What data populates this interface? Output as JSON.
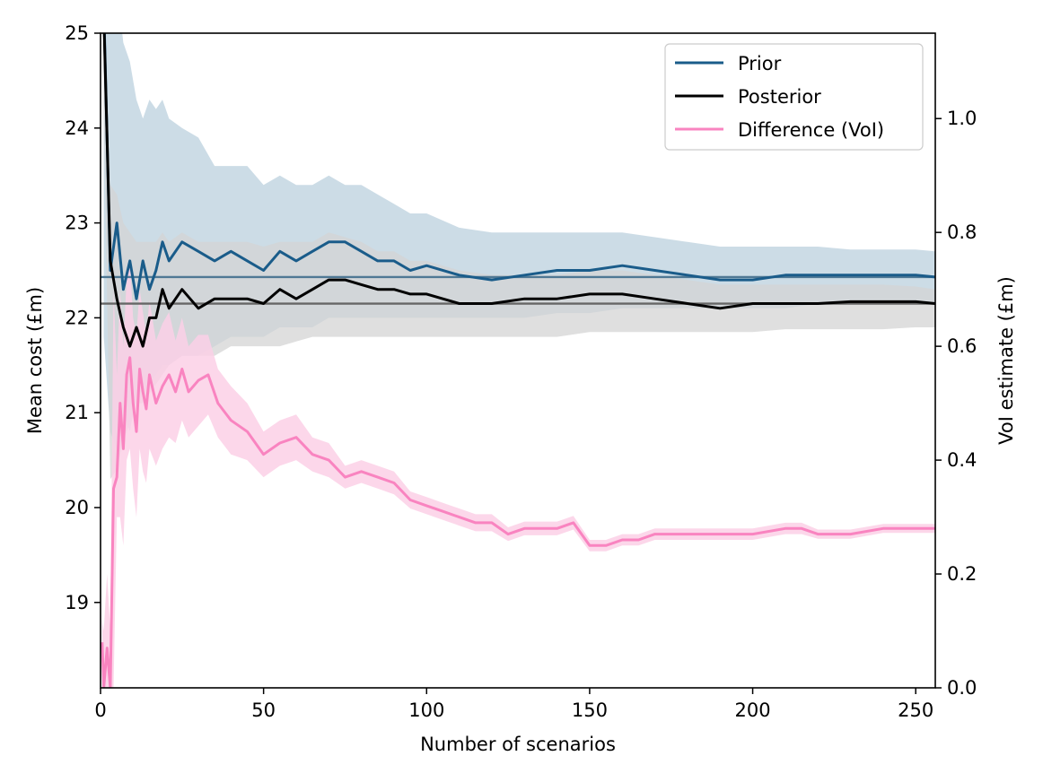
{
  "chart_data": {
    "type": "line",
    "title": "",
    "xlabel": "Number of scenarios",
    "ylabel": "Mean cost (£m)",
    "y2label": "VoI estimate (£m)",
    "xlim": [
      0,
      256
    ],
    "ylim": [
      18.1,
      25
    ],
    "y2lim": [
      0.0,
      1.15
    ],
    "xticks": [
      0,
      50,
      100,
      150,
      200,
      250
    ],
    "yticks": [
      19,
      20,
      21,
      22,
      23,
      24,
      25
    ],
    "y2ticks": [
      0.0,
      0.2,
      0.4,
      0.6,
      0.8,
      1.0
    ],
    "legend_position": "top-right",
    "reference_lines": [
      {
        "name": "Prior mean reference",
        "axis": "left",
        "y": 22.43,
        "color": "#4f7894"
      },
      {
        "name": "Posterior mean reference",
        "axis": "left",
        "y": 22.15,
        "color": "#666666"
      }
    ],
    "series": [
      {
        "name": "Prior",
        "axis": "left",
        "color": "#1a5c8a",
        "band_color": "#c3d6e2",
        "x": [
          1,
          3,
          5,
          7,
          9,
          11,
          13,
          15,
          17,
          19,
          21,
          25,
          30,
          35,
          40,
          45,
          50,
          55,
          60,
          65,
          70,
          75,
          80,
          85,
          90,
          95,
          100,
          110,
          120,
          130,
          140,
          150,
          160,
          170,
          180,
          190,
          200,
          210,
          220,
          230,
          240,
          250,
          256
        ],
        "values": [
          25.3,
          22.5,
          23.0,
          22.3,
          22.6,
          22.2,
          22.6,
          22.3,
          22.5,
          22.8,
          22.6,
          22.8,
          22.7,
          22.6,
          22.7,
          22.6,
          22.5,
          22.7,
          22.6,
          22.7,
          22.8,
          22.8,
          22.7,
          22.6,
          22.6,
          22.5,
          22.55,
          22.45,
          22.4,
          22.45,
          22.5,
          22.5,
          22.55,
          22.5,
          22.45,
          22.4,
          22.4,
          22.45,
          22.45,
          22.45,
          22.45,
          22.45,
          22.43
        ],
        "upper": [
          26.0,
          25.8,
          25.5,
          24.9,
          24.7,
          24.3,
          24.1,
          24.3,
          24.2,
          24.3,
          24.1,
          24.0,
          23.9,
          23.6,
          23.6,
          23.6,
          23.4,
          23.5,
          23.4,
          23.4,
          23.5,
          23.4,
          23.4,
          23.3,
          23.2,
          23.1,
          23.1,
          22.95,
          22.9,
          22.9,
          22.9,
          22.9,
          22.9,
          22.85,
          22.8,
          22.75,
          22.75,
          22.75,
          22.75,
          22.72,
          22.72,
          22.72,
          22.7
        ],
        "lower": [
          21.8,
          20.8,
          20.6,
          21.0,
          20.8,
          21.2,
          21.2,
          21.3,
          21.4,
          21.5,
          21.5,
          21.6,
          21.6,
          21.7,
          21.8,
          21.8,
          21.8,
          21.9,
          21.9,
          21.9,
          22.0,
          22.0,
          22.0,
          22.0,
          22.0,
          22.0,
          22.0,
          22.0,
          22.0,
          22.0,
          22.05,
          22.05,
          22.1,
          22.1,
          22.1,
          22.1,
          22.1,
          22.1,
          22.15,
          22.15,
          22.15,
          22.15,
          22.15
        ]
      },
      {
        "name": "Posterior",
        "axis": "left",
        "color": "#000000",
        "band_color": "#d4d4d4",
        "x": [
          1,
          3,
          5,
          7,
          9,
          11,
          13,
          15,
          17,
          19,
          21,
          25,
          30,
          35,
          40,
          45,
          50,
          55,
          60,
          65,
          70,
          75,
          80,
          85,
          90,
          95,
          100,
          110,
          120,
          130,
          140,
          150,
          160,
          170,
          180,
          190,
          200,
          210,
          220,
          230,
          240,
          250,
          256
        ],
        "values": [
          25.2,
          22.6,
          22.2,
          21.9,
          21.7,
          21.9,
          21.7,
          22.0,
          22.0,
          22.3,
          22.1,
          22.3,
          22.1,
          22.2,
          22.2,
          22.2,
          22.15,
          22.3,
          22.2,
          22.3,
          22.4,
          22.4,
          22.35,
          22.3,
          22.3,
          22.25,
          22.25,
          22.15,
          22.15,
          22.2,
          22.2,
          22.25,
          22.25,
          22.2,
          22.15,
          22.1,
          22.15,
          22.15,
          22.15,
          22.17,
          22.17,
          22.17,
          22.15
        ],
        "lower": [
          24.2,
          20.3,
          20.4,
          20.7,
          20.9,
          21.1,
          21.1,
          21.2,
          21.3,
          21.4,
          21.5,
          21.6,
          21.6,
          21.6,
          21.7,
          21.7,
          21.7,
          21.7,
          21.75,
          21.8,
          21.8,
          21.8,
          21.8,
          21.8,
          21.8,
          21.8,
          21.8,
          21.8,
          21.8,
          21.8,
          21.8,
          21.85,
          21.85,
          21.85,
          21.85,
          21.85,
          21.85,
          21.88,
          21.88,
          21.88,
          21.88,
          21.9,
          21.9
        ],
        "upper": [
          25.6,
          23.4,
          23.3,
          23.0,
          22.9,
          22.8,
          22.8,
          22.8,
          22.8,
          22.9,
          22.8,
          22.9,
          22.8,
          22.8,
          22.8,
          22.8,
          22.75,
          22.8,
          22.8,
          22.8,
          22.9,
          22.85,
          22.8,
          22.7,
          22.7,
          22.6,
          22.6,
          22.5,
          22.45,
          22.45,
          22.45,
          22.5,
          22.5,
          22.45,
          22.4,
          22.35,
          22.35,
          22.35,
          22.35,
          22.35,
          22.35,
          22.33,
          22.3
        ]
      },
      {
        "name": "Difference (VoI)",
        "axis": "right",
        "color": "#f984c0",
        "band_color": "#fbd0e6",
        "x": [
          0.5,
          1,
          2,
          3,
          4,
          5,
          6,
          7,
          8,
          9,
          10,
          11,
          12,
          13,
          14,
          15,
          17,
          19,
          21,
          23,
          25,
          27,
          30,
          33,
          36,
          40,
          45,
          50,
          55,
          60,
          65,
          70,
          75,
          80,
          85,
          90,
          95,
          100,
          105,
          110,
          115,
          120,
          125,
          130,
          135,
          140,
          145,
          150,
          155,
          160,
          165,
          170,
          175,
          180,
          190,
          200,
          210,
          215,
          220,
          230,
          240,
          250,
          256
        ],
        "values": [
          0.08,
          0.0,
          0.07,
          0.0,
          0.35,
          0.37,
          0.5,
          0.42,
          0.55,
          0.58,
          0.5,
          0.45,
          0.56,
          0.52,
          0.49,
          0.55,
          0.5,
          0.53,
          0.55,
          0.52,
          0.56,
          0.52,
          0.54,
          0.55,
          0.5,
          0.47,
          0.45,
          0.41,
          0.43,
          0.44,
          0.41,
          0.4,
          0.37,
          0.38,
          0.37,
          0.36,
          0.33,
          0.32,
          0.31,
          0.3,
          0.29,
          0.29,
          0.27,
          0.28,
          0.28,
          0.28,
          0.29,
          0.25,
          0.25,
          0.26,
          0.26,
          0.27,
          0.27,
          0.27,
          0.27,
          0.27,
          0.28,
          0.28,
          0.27,
          0.27,
          0.28,
          0.28,
          0.28
        ],
        "lower": [
          0.0,
          0.0,
          0.0,
          0.0,
          0.0,
          0.3,
          0.3,
          0.25,
          0.4,
          0.42,
          0.35,
          0.3,
          0.42,
          0.38,
          0.36,
          0.42,
          0.39,
          0.42,
          0.44,
          0.43,
          0.47,
          0.44,
          0.46,
          0.48,
          0.44,
          0.41,
          0.4,
          0.37,
          0.39,
          0.4,
          0.38,
          0.37,
          0.35,
          0.36,
          0.35,
          0.34,
          0.315,
          0.305,
          0.295,
          0.285,
          0.275,
          0.275,
          0.258,
          0.268,
          0.268,
          0.268,
          0.278,
          0.24,
          0.24,
          0.25,
          0.25,
          0.26,
          0.26,
          0.26,
          0.26,
          0.26,
          0.27,
          0.27,
          0.262,
          0.262,
          0.272,
          0.272,
          0.272
        ],
        "upper": [
          0.12,
          0.1,
          0.2,
          0.1,
          0.7,
          0.55,
          0.7,
          0.6,
          0.72,
          0.75,
          0.65,
          0.62,
          0.7,
          0.66,
          0.62,
          0.68,
          0.61,
          0.64,
          0.66,
          0.61,
          0.65,
          0.6,
          0.62,
          0.62,
          0.56,
          0.53,
          0.5,
          0.45,
          0.47,
          0.48,
          0.44,
          0.43,
          0.39,
          0.4,
          0.39,
          0.38,
          0.345,
          0.335,
          0.325,
          0.315,
          0.305,
          0.305,
          0.282,
          0.292,
          0.292,
          0.292,
          0.302,
          0.26,
          0.26,
          0.27,
          0.27,
          0.28,
          0.28,
          0.28,
          0.28,
          0.28,
          0.29,
          0.29,
          0.278,
          0.278,
          0.288,
          0.288,
          0.288
        ]
      }
    ]
  }
}
